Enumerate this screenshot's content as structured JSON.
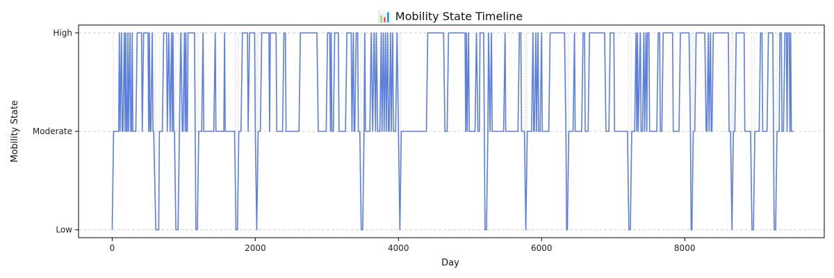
{
  "chart_data": {
    "type": "line",
    "title": "📊 Mobility State Timeline",
    "xlabel": "Day",
    "ylabel": "Mobility State",
    "xlim": [
      -470,
      9950
    ],
    "ylim": [
      -0.08,
      2.08
    ],
    "x_ticks": [
      {
        "value": 0,
        "label": "0"
      },
      {
        "value": 2000,
        "label": "2000"
      },
      {
        "value": 4000,
        "label": "4000"
      },
      {
        "value": 6000,
        "label": "6000"
      },
      {
        "value": 8000,
        "label": "8000"
      }
    ],
    "y_ticks": [
      {
        "value": 0,
        "label": "Low"
      },
      {
        "value": 1,
        "label": "Moderate"
      },
      {
        "value": 2,
        "label": "High"
      }
    ],
    "grid": true,
    "colors": {
      "line": "#5b7fde",
      "grid": "#d0d0d0",
      "axis": "#000000"
    },
    "series": [
      {
        "name": "",
        "step": 10,
        "x_start": 0,
        "x_end": 9520,
        "segments": [
          [
            0,
            0
          ],
          [
            20,
            1
          ],
          [
            90,
            1
          ],
          [
            100,
            2
          ],
          [
            110,
            1
          ],
          [
            130,
            2
          ],
          [
            140,
            1
          ],
          [
            150,
            1
          ],
          [
            170,
            2
          ],
          [
            180,
            1
          ],
          [
            190,
            2
          ],
          [
            200,
            1
          ],
          [
            210,
            1
          ],
          [
            220,
            2
          ],
          [
            230,
            1
          ],
          [
            250,
            2
          ],
          [
            260,
            1
          ],
          [
            270,
            1
          ],
          [
            280,
            2
          ],
          [
            290,
            1
          ],
          [
            330,
            1
          ],
          [
            350,
            2
          ],
          [
            410,
            2
          ],
          [
            420,
            1
          ],
          [
            440,
            2
          ],
          [
            500,
            2
          ],
          [
            510,
            1
          ],
          [
            520,
            2
          ],
          [
            530,
            1
          ],
          [
            540,
            1
          ],
          [
            560,
            2
          ],
          [
            570,
            1
          ],
          [
            580,
            1
          ],
          [
            610,
            0
          ],
          [
            650,
            0
          ],
          [
            660,
            1
          ],
          [
            700,
            1
          ],
          [
            720,
            2
          ],
          [
            760,
            2
          ],
          [
            770,
            1
          ],
          [
            790,
            2
          ],
          [
            810,
            1
          ],
          [
            830,
            2
          ],
          [
            840,
            1
          ],
          [
            850,
            2
          ],
          [
            860,
            1
          ],
          [
            870,
            1
          ],
          [
            890,
            0
          ],
          [
            920,
            0
          ],
          [
            940,
            1
          ],
          [
            960,
            2
          ],
          [
            980,
            1
          ],
          [
            990,
            1
          ],
          [
            1010,
            2
          ],
          [
            1020,
            1
          ],
          [
            1030,
            2
          ],
          [
            1040,
            1
          ],
          [
            1050,
            1
          ],
          [
            1060,
            2
          ],
          [
            1150,
            2
          ],
          [
            1160,
            1
          ],
          [
            1170,
            0
          ],
          [
            1190,
            0
          ],
          [
            1210,
            1
          ],
          [
            1250,
            1
          ],
          [
            1270,
            2
          ],
          [
            1280,
            1
          ],
          [
            1420,
            1
          ],
          [
            1440,
            2
          ],
          [
            1450,
            1
          ],
          [
            1560,
            1
          ],
          [
            1570,
            2
          ],
          [
            1580,
            1
          ],
          [
            1710,
            1
          ],
          [
            1730,
            0
          ],
          [
            1750,
            0
          ],
          [
            1770,
            1
          ],
          [
            1800,
            1
          ],
          [
            1820,
            2
          ],
          [
            1890,
            2
          ],
          [
            1900,
            1
          ],
          [
            1920,
            2
          ],
          [
            1990,
            2
          ],
          [
            2000,
            1
          ],
          [
            2020,
            0
          ],
          [
            2040,
            1
          ],
          [
            2070,
            1
          ],
          [
            2090,
            2
          ],
          [
            2190,
            2
          ],
          [
            2200,
            1
          ],
          [
            2210,
            2
          ],
          [
            2290,
            2
          ],
          [
            2300,
            1
          ],
          [
            2380,
            1
          ],
          [
            2400,
            2
          ],
          [
            2420,
            2
          ],
          [
            2430,
            1
          ],
          [
            2610,
            1
          ],
          [
            2630,
            2
          ],
          [
            2860,
            2
          ],
          [
            2880,
            1
          ],
          [
            2990,
            1
          ],
          [
            3010,
            2
          ],
          [
            3040,
            2
          ],
          [
            3050,
            1
          ],
          [
            3060,
            2
          ],
          [
            3070,
            1
          ],
          [
            3090,
            1
          ],
          [
            3110,
            2
          ],
          [
            3160,
            2
          ],
          [
            3170,
            1
          ],
          [
            3260,
            1
          ],
          [
            3280,
            2
          ],
          [
            3340,
            2
          ],
          [
            3350,
            1
          ],
          [
            3370,
            2
          ],
          [
            3380,
            1
          ],
          [
            3390,
            1
          ],
          [
            3410,
            2
          ],
          [
            3430,
            2
          ],
          [
            3440,
            1
          ],
          [
            3460,
            1
          ],
          [
            3480,
            0
          ],
          [
            3500,
            0
          ],
          [
            3520,
            1
          ],
          [
            3530,
            2
          ],
          [
            3540,
            1
          ],
          [
            3600,
            1
          ],
          [
            3620,
            2
          ],
          [
            3640,
            1
          ],
          [
            3660,
            2
          ],
          [
            3680,
            1
          ],
          [
            3690,
            2
          ],
          [
            3710,
            1
          ],
          [
            3740,
            1
          ],
          [
            3760,
            2
          ],
          [
            3770,
            1
          ],
          [
            3790,
            2
          ],
          [
            3800,
            1
          ],
          [
            3820,
            2
          ],
          [
            3830,
            1
          ],
          [
            3850,
            2
          ],
          [
            3860,
            1
          ],
          [
            3870,
            1
          ],
          [
            3890,
            2
          ],
          [
            3900,
            1
          ],
          [
            3920,
            2
          ],
          [
            3930,
            1
          ],
          [
            3960,
            1
          ],
          [
            3980,
            2
          ],
          [
            4000,
            1
          ],
          [
            4020,
            0
          ],
          [
            4040,
            1
          ],
          [
            4390,
            1
          ],
          [
            4410,
            2
          ],
          [
            4630,
            2
          ],
          [
            4650,
            1
          ],
          [
            4680,
            1
          ],
          [
            4700,
            2
          ],
          [
            4930,
            2
          ],
          [
            4940,
            1
          ],
          [
            4950,
            2
          ],
          [
            4960,
            1
          ],
          [
            4980,
            2
          ],
          [
            4990,
            1
          ],
          [
            5070,
            1
          ],
          [
            5090,
            2
          ],
          [
            5110,
            1
          ],
          [
            5130,
            1
          ],
          [
            5140,
            2
          ],
          [
            5190,
            2
          ],
          [
            5200,
            1
          ],
          [
            5210,
            0
          ],
          [
            5230,
            0
          ],
          [
            5250,
            1
          ],
          [
            5260,
            2
          ],
          [
            5280,
            1
          ],
          [
            5300,
            2
          ],
          [
            5310,
            1
          ],
          [
            5470,
            1
          ],
          [
            5490,
            2
          ],
          [
            5500,
            1
          ],
          [
            5670,
            1
          ],
          [
            5690,
            2
          ],
          [
            5710,
            2
          ],
          [
            5720,
            1
          ],
          [
            5760,
            1
          ],
          [
            5780,
            0
          ],
          [
            5800,
            1
          ],
          [
            5860,
            1
          ],
          [
            5880,
            2
          ],
          [
            5890,
            1
          ],
          [
            5900,
            1
          ],
          [
            5920,
            2
          ],
          [
            5930,
            1
          ],
          [
            5950,
            2
          ],
          [
            5960,
            1
          ],
          [
            5980,
            1
          ],
          [
            6000,
            2
          ],
          [
            6010,
            1
          ],
          [
            6100,
            1
          ],
          [
            6120,
            2
          ],
          [
            6320,
            2
          ],
          [
            6340,
            1
          ],
          [
            6350,
            0
          ],
          [
            6360,
            0
          ],
          [
            6380,
            1
          ],
          [
            6440,
            1
          ],
          [
            6460,
            2
          ],
          [
            6470,
            1
          ],
          [
            6560,
            1
          ],
          [
            6580,
            2
          ],
          [
            6600,
            2
          ],
          [
            6610,
            1
          ],
          [
            6650,
            1
          ],
          [
            6670,
            2
          ],
          [
            6880,
            2
          ],
          [
            6900,
            1
          ],
          [
            6940,
            1
          ],
          [
            6960,
            2
          ],
          [
            7010,
            2
          ],
          [
            7020,
            1
          ],
          [
            7200,
            1
          ],
          [
            7220,
            0
          ],
          [
            7240,
            0
          ],
          [
            7260,
            1
          ],
          [
            7300,
            1
          ],
          [
            7320,
            2
          ],
          [
            7330,
            1
          ],
          [
            7340,
            2
          ],
          [
            7350,
            1
          ],
          [
            7380,
            2
          ],
          [
            7390,
            1
          ],
          [
            7410,
            1
          ],
          [
            7430,
            2
          ],
          [
            7440,
            1
          ],
          [
            7460,
            2
          ],
          [
            7470,
            1
          ],
          [
            7480,
            2
          ],
          [
            7500,
            2
          ],
          [
            7510,
            1
          ],
          [
            7610,
            1
          ],
          [
            7630,
            2
          ],
          [
            7650,
            2
          ],
          [
            7660,
            1
          ],
          [
            7680,
            1
          ],
          [
            7700,
            2
          ],
          [
            7830,
            2
          ],
          [
            7840,
            1
          ],
          [
            7920,
            1
          ],
          [
            7940,
            2
          ],
          [
            8060,
            2
          ],
          [
            8080,
            1
          ],
          [
            8090,
            0
          ],
          [
            8100,
            0
          ],
          [
            8120,
            1
          ],
          [
            8140,
            1
          ],
          [
            8160,
            2
          ],
          [
            8280,
            2
          ],
          [
            8300,
            1
          ],
          [
            8310,
            1
          ],
          [
            8330,
            2
          ],
          [
            8340,
            1
          ],
          [
            8360,
            2
          ],
          [
            8370,
            1
          ],
          [
            8380,
            1
          ],
          [
            8400,
            2
          ],
          [
            8610,
            2
          ],
          [
            8620,
            1
          ],
          [
            8640,
            1
          ],
          [
            8660,
            0
          ],
          [
            8680,
            1
          ],
          [
            8700,
            1
          ],
          [
            8720,
            2
          ],
          [
            8830,
            2
          ],
          [
            8840,
            1
          ],
          [
            8920,
            1
          ],
          [
            8940,
            0
          ],
          [
            8960,
            0
          ],
          [
            8980,
            1
          ],
          [
            9040,
            1
          ],
          [
            9060,
            2
          ],
          [
            9080,
            2
          ],
          [
            9090,
            1
          ],
          [
            9150,
            1
          ],
          [
            9170,
            2
          ],
          [
            9230,
            2
          ],
          [
            9240,
            1
          ],
          [
            9250,
            0
          ],
          [
            9270,
            0
          ],
          [
            9290,
            1
          ],
          [
            9320,
            1
          ],
          [
            9330,
            2
          ],
          [
            9350,
            2
          ],
          [
            9360,
            1
          ],
          [
            9380,
            1
          ],
          [
            9400,
            2
          ],
          [
            9420,
            2
          ],
          [
            9430,
            1
          ],
          [
            9440,
            2
          ],
          [
            9460,
            2
          ],
          [
            9470,
            1
          ],
          [
            9480,
            2
          ],
          [
            9490,
            1
          ],
          [
            9520,
            1
          ]
        ]
      }
    ]
  }
}
